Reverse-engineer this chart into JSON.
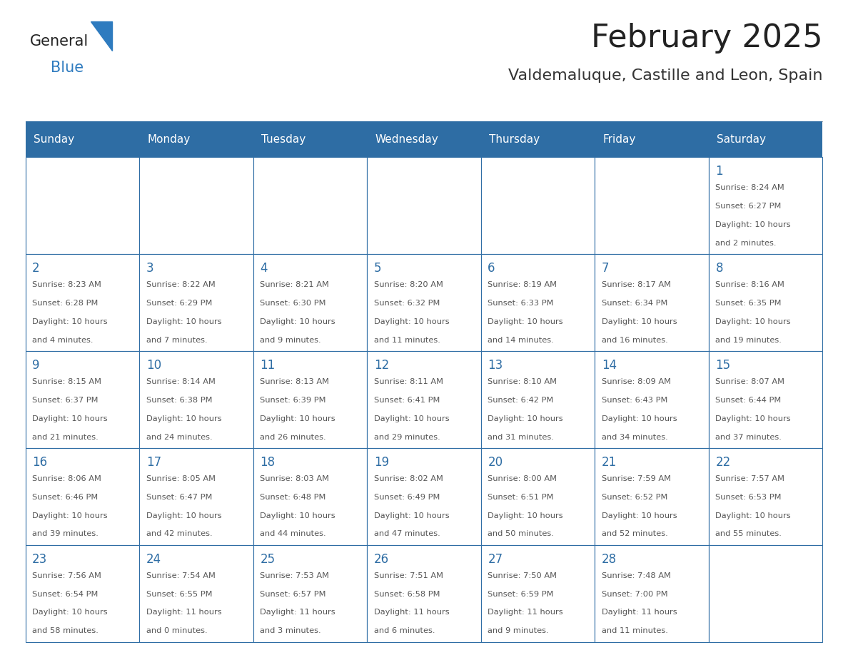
{
  "title": "February 2025",
  "subtitle": "Valdemaluque, Castille and Leon, Spain",
  "header_bg": "#2E6DA4",
  "header_text_color": "#FFFFFF",
  "cell_bg": "#FFFFFF",
  "cell_border_color": "#2E6DA4",
  "day_number_color": "#2E6DA4",
  "cell_text_color": "#555555",
  "days_of_week": [
    "Sunday",
    "Monday",
    "Tuesday",
    "Wednesday",
    "Thursday",
    "Friday",
    "Saturday"
  ],
  "title_color": "#222222",
  "subtitle_color": "#333333",
  "general_color": "#222222",
  "blue_color": "#2E7BBF",
  "calendar_data": {
    "1": {
      "sunrise": "8:24 AM",
      "sunset": "6:27 PM",
      "daylight_hours": 10,
      "daylight_minutes": 2
    },
    "2": {
      "sunrise": "8:23 AM",
      "sunset": "6:28 PM",
      "daylight_hours": 10,
      "daylight_minutes": 4
    },
    "3": {
      "sunrise": "8:22 AM",
      "sunset": "6:29 PM",
      "daylight_hours": 10,
      "daylight_minutes": 7
    },
    "4": {
      "sunrise": "8:21 AM",
      "sunset": "6:30 PM",
      "daylight_hours": 10,
      "daylight_minutes": 9
    },
    "5": {
      "sunrise": "8:20 AM",
      "sunset": "6:32 PM",
      "daylight_hours": 10,
      "daylight_minutes": 11
    },
    "6": {
      "sunrise": "8:19 AM",
      "sunset": "6:33 PM",
      "daylight_hours": 10,
      "daylight_minutes": 14
    },
    "7": {
      "sunrise": "8:17 AM",
      "sunset": "6:34 PM",
      "daylight_hours": 10,
      "daylight_minutes": 16
    },
    "8": {
      "sunrise": "8:16 AM",
      "sunset": "6:35 PM",
      "daylight_hours": 10,
      "daylight_minutes": 19
    },
    "9": {
      "sunrise": "8:15 AM",
      "sunset": "6:37 PM",
      "daylight_hours": 10,
      "daylight_minutes": 21
    },
    "10": {
      "sunrise": "8:14 AM",
      "sunset": "6:38 PM",
      "daylight_hours": 10,
      "daylight_minutes": 24
    },
    "11": {
      "sunrise": "8:13 AM",
      "sunset": "6:39 PM",
      "daylight_hours": 10,
      "daylight_minutes": 26
    },
    "12": {
      "sunrise": "8:11 AM",
      "sunset": "6:41 PM",
      "daylight_hours": 10,
      "daylight_minutes": 29
    },
    "13": {
      "sunrise": "8:10 AM",
      "sunset": "6:42 PM",
      "daylight_hours": 10,
      "daylight_minutes": 31
    },
    "14": {
      "sunrise": "8:09 AM",
      "sunset": "6:43 PM",
      "daylight_hours": 10,
      "daylight_minutes": 34
    },
    "15": {
      "sunrise": "8:07 AM",
      "sunset": "6:44 PM",
      "daylight_hours": 10,
      "daylight_minutes": 37
    },
    "16": {
      "sunrise": "8:06 AM",
      "sunset": "6:46 PM",
      "daylight_hours": 10,
      "daylight_minutes": 39
    },
    "17": {
      "sunrise": "8:05 AM",
      "sunset": "6:47 PM",
      "daylight_hours": 10,
      "daylight_minutes": 42
    },
    "18": {
      "sunrise": "8:03 AM",
      "sunset": "6:48 PM",
      "daylight_hours": 10,
      "daylight_minutes": 44
    },
    "19": {
      "sunrise": "8:02 AM",
      "sunset": "6:49 PM",
      "daylight_hours": 10,
      "daylight_minutes": 47
    },
    "20": {
      "sunrise": "8:00 AM",
      "sunset": "6:51 PM",
      "daylight_hours": 10,
      "daylight_minutes": 50
    },
    "21": {
      "sunrise": "7:59 AM",
      "sunset": "6:52 PM",
      "daylight_hours": 10,
      "daylight_minutes": 52
    },
    "22": {
      "sunrise": "7:57 AM",
      "sunset": "6:53 PM",
      "daylight_hours": 10,
      "daylight_minutes": 55
    },
    "23": {
      "sunrise": "7:56 AM",
      "sunset": "6:54 PM",
      "daylight_hours": 10,
      "daylight_minutes": 58
    },
    "24": {
      "sunrise": "7:54 AM",
      "sunset": "6:55 PM",
      "daylight_hours": 11,
      "daylight_minutes": 0
    },
    "25": {
      "sunrise": "7:53 AM",
      "sunset": "6:57 PM",
      "daylight_hours": 11,
      "daylight_minutes": 3
    },
    "26": {
      "sunrise": "7:51 AM",
      "sunset": "6:58 PM",
      "daylight_hours": 11,
      "daylight_minutes": 6
    },
    "27": {
      "sunrise": "7:50 AM",
      "sunset": "6:59 PM",
      "daylight_hours": 11,
      "daylight_minutes": 9
    },
    "28": {
      "sunrise": "7:48 AM",
      "sunset": "7:00 PM",
      "daylight_hours": 11,
      "daylight_minutes": 11
    }
  },
  "first_day_of_week": 6,
  "num_days": 28
}
